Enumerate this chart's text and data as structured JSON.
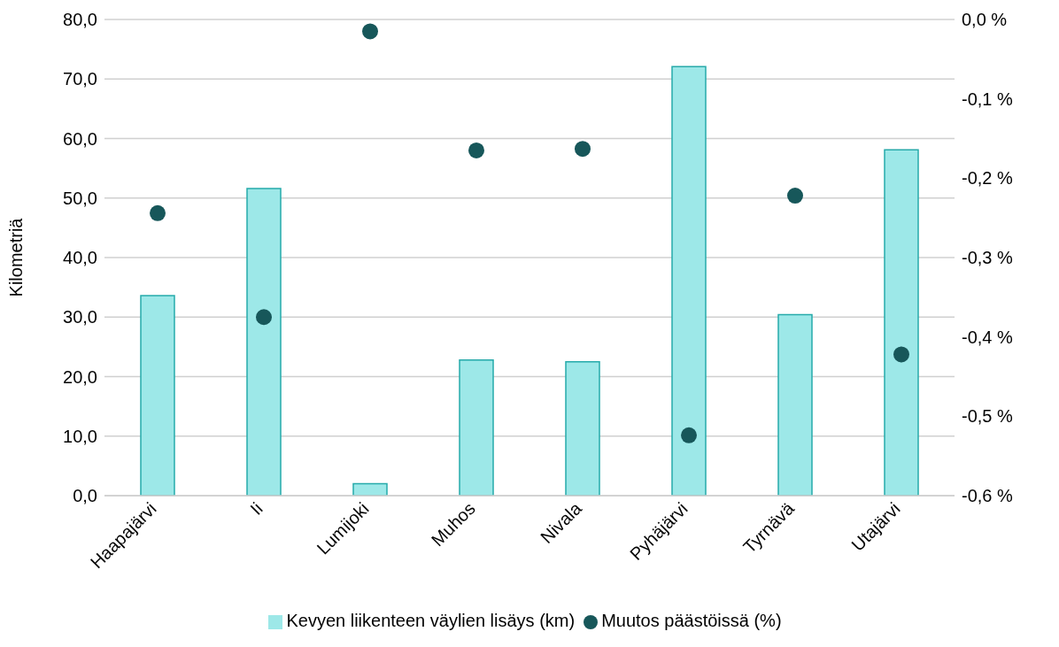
{
  "chart_data": {
    "type": "bar",
    "ylabel": "Kilometriä",
    "categories": [
      "Haapajärvi",
      "Ii",
      "Lumijoki",
      "Muhos",
      "Nivala",
      "Pyhäjärvi",
      "Tyrnävä",
      "Utajärvi"
    ],
    "series": [
      {
        "name": "Kevyen liikenteen väylien lisäys (km)",
        "color": "#9de8e8",
        "values": [
          33.6,
          51.6,
          2.0,
          22.8,
          22.5,
          72.1,
          30.4,
          58.1
        ]
      },
      {
        "name": "Muutos päästöissä (%)",
        "type": "scatter",
        "axis": "y2",
        "color": "#17575a",
        "marker": "circle",
        "values": [
          -0.244,
          -0.375,
          -0.015,
          -0.165,
          -0.163,
          -0.524,
          -0.222,
          -0.422
        ]
      }
    ],
    "ylim": [
      0,
      80
    ],
    "yticks": [
      {
        "value": 0,
        "label": "0,0"
      },
      {
        "value": 10,
        "label": "10,0"
      },
      {
        "value": 20,
        "label": "20,0"
      },
      {
        "value": 30,
        "label": "30,0"
      },
      {
        "value": 40,
        "label": "40,0"
      },
      {
        "value": 50,
        "label": "50,0"
      },
      {
        "value": 60,
        "label": "60,0"
      },
      {
        "value": 70,
        "label": "70,0"
      },
      {
        "value": 80,
        "label": "80,0"
      }
    ],
    "y2lim": [
      -0.6,
      0
    ],
    "y2ticks": [
      {
        "value": -0.6,
        "label": "-0,6 %"
      },
      {
        "value": -0.5,
        "label": "-0,5 %"
      },
      {
        "value": -0.4,
        "label": "-0,4 %"
      },
      {
        "value": -0.3,
        "label": "-0,3 %"
      },
      {
        "value": -0.2,
        "label": "-0,2 %"
      },
      {
        "value": -0.1,
        "label": "-0,1 %"
      },
      {
        "value": 0,
        "label": "0,0 %"
      }
    ],
    "grid": "y",
    "legend": "bottom"
  }
}
